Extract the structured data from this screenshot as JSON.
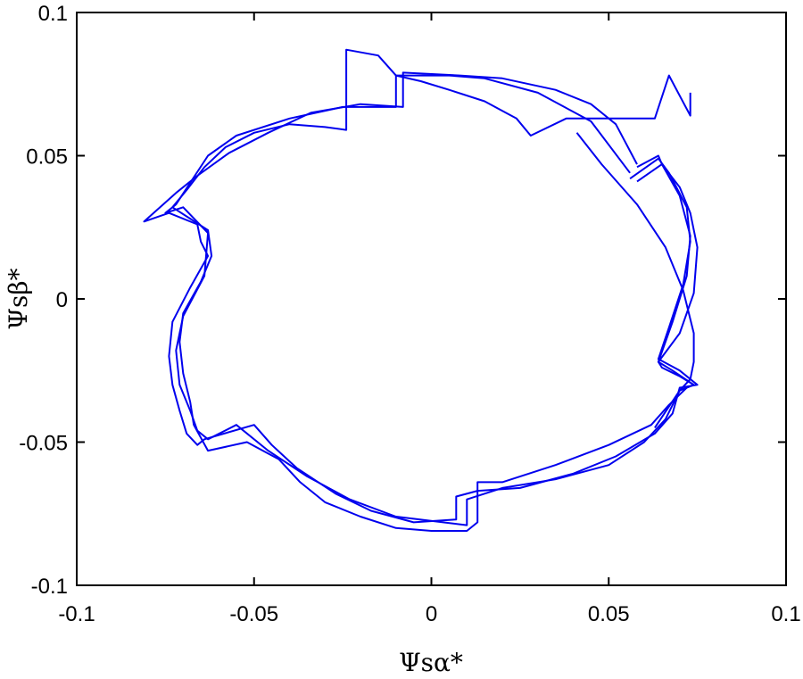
{
  "chart_data": {
    "type": "line",
    "title": "",
    "xlabel": "Ψsα*",
    "ylabel": "Ψsβ*",
    "xlim": [
      -0.1,
      0.1
    ],
    "ylim": [
      -0.1,
      0.1
    ],
    "xticks": [
      -0.1,
      -0.05,
      0,
      0.05,
      0.1
    ],
    "yticks": [
      -0.1,
      -0.05,
      0,
      0.05,
      0.1
    ],
    "xtick_labels": [
      "-0.1",
      "-0.05",
      "0",
      "0.05",
      "0.1"
    ],
    "ytick_labels": [
      "-0.1",
      "-0.05",
      "0",
      "0.05",
      "0.1"
    ],
    "grid": false,
    "legend": "none",
    "line_color": "#0000ee",
    "series": [
      {
        "x": [
          0.073,
          0.073,
          0.067,
          0.063,
          0.038,
          0.028,
          0.024,
          0.015,
          0.005,
          -0.003,
          -0.01,
          -0.015,
          -0.024,
          -0.024,
          -0.03,
          -0.04,
          -0.05,
          -0.058,
          -0.064,
          -0.069,
          -0.073,
          -0.068,
          -0.063,
          -0.062,
          -0.065,
          -0.07,
          -0.071,
          -0.07,
          -0.068,
          -0.067,
          -0.063,
          -0.052,
          -0.043,
          -0.037,
          -0.03,
          -0.02,
          -0.01,
          0.0,
          0.01,
          0.013,
          0.013,
          0.02,
          0.035,
          0.05,
          0.062,
          0.067,
          0.072,
          0.074,
          0.07,
          0.065,
          0.064,
          0.07,
          0.074,
          0.075,
          0.073,
          0.07,
          0.065,
          0.064,
          0.058
        ],
        "y": [
          0.072,
          0.064,
          0.078,
          0.063,
          0.063,
          0.057,
          0.063,
          0.069,
          0.073,
          0.076,
          0.078,
          0.085,
          0.087,
          0.059,
          0.06,
          0.061,
          0.058,
          0.053,
          0.046,
          0.038,
          0.032,
          0.028,
          0.024,
          0.015,
          0.006,
          -0.005,
          -0.015,
          -0.026,
          -0.036,
          -0.044,
          -0.053,
          -0.05,
          -0.056,
          -0.064,
          -0.071,
          -0.076,
          -0.08,
          -0.081,
          -0.081,
          -0.078,
          -0.064,
          -0.064,
          -0.058,
          -0.051,
          -0.044,
          -0.037,
          -0.031,
          -0.03,
          -0.027,
          -0.024,
          -0.022,
          -0.012,
          0.002,
          0.018,
          0.03,
          0.039,
          0.047,
          0.05,
          0.046
        ]
      },
      {
        "x": [
          0.058,
          0.052,
          0.045,
          0.035,
          0.02,
          0.008,
          -0.008,
          -0.008,
          -0.02,
          -0.034,
          -0.046,
          -0.057,
          -0.066,
          -0.072,
          -0.081,
          -0.074,
          -0.066,
          -0.065,
          -0.063,
          -0.068,
          -0.073,
          -0.074,
          -0.073,
          -0.071,
          -0.069,
          -0.066,
          -0.064,
          -0.05,
          -0.045,
          -0.038,
          -0.027,
          -0.017,
          -0.005,
          0.007,
          0.007,
          0.013,
          0.025,
          0.04,
          0.052,
          0.063,
          0.068,
          0.07,
          0.075,
          0.07,
          0.064,
          0.067,
          0.071,
          0.073,
          0.072,
          0.067,
          0.064,
          0.056
        ],
        "y": [
          0.047,
          0.061,
          0.068,
          0.073,
          0.077,
          0.078,
          0.079,
          0.067,
          0.068,
          0.065,
          0.058,
          0.051,
          0.043,
          0.037,
          0.027,
          0.03,
          0.026,
          0.02,
          0.015,
          0.004,
          -0.008,
          -0.02,
          -0.03,
          -0.039,
          -0.047,
          -0.051,
          -0.049,
          -0.044,
          -0.051,
          -0.059,
          -0.068,
          -0.074,
          -0.078,
          -0.077,
          -0.069,
          -0.067,
          -0.066,
          -0.061,
          -0.055,
          -0.047,
          -0.04,
          -0.031,
          -0.03,
          -0.025,
          -0.021,
          -0.01,
          0.005,
          0.02,
          0.032,
          0.044,
          0.049,
          0.042
        ]
      },
      {
        "x": [
          0.056,
          0.045,
          0.03,
          0.015,
          0.005,
          -0.01,
          -0.01,
          -0.025,
          -0.04,
          -0.055,
          -0.063,
          -0.072,
          -0.075,
          -0.07,
          -0.063,
          -0.064,
          -0.07,
          -0.072,
          -0.071,
          -0.068,
          -0.066,
          -0.063,
          -0.055,
          -0.046,
          -0.035,
          -0.023,
          -0.01,
          0.01,
          0.01,
          0.02,
          0.035,
          0.05,
          0.06,
          0.066,
          0.07,
          0.074,
          0.068,
          0.064,
          0.068,
          0.072,
          0.073,
          0.07,
          0.065,
          0.058
        ],
        "y": [
          0.044,
          0.062,
          0.072,
          0.077,
          0.078,
          0.078,
          0.067,
          0.067,
          0.063,
          0.057,
          0.05,
          0.033,
          0.03,
          0.032,
          0.023,
          0.008,
          -0.006,
          -0.018,
          -0.03,
          -0.039,
          -0.046,
          -0.049,
          -0.044,
          -0.053,
          -0.062,
          -0.07,
          -0.076,
          -0.079,
          -0.07,
          -0.066,
          -0.063,
          -0.058,
          -0.05,
          -0.042,
          -0.032,
          -0.03,
          -0.025,
          -0.022,
          -0.008,
          0.008,
          0.022,
          0.036,
          0.047,
          0.041
        ]
      },
      {
        "x": [
          0.041,
          0.048,
          0.058,
          0.066,
          0.071,
          0.074,
          0.074,
          0.073,
          0.07,
          0.063
        ],
        "y": [
          0.058,
          0.047,
          0.033,
          0.018,
          0.003,
          -0.012,
          -0.022,
          -0.028,
          -0.032,
          -0.045
        ]
      }
    ]
  }
}
